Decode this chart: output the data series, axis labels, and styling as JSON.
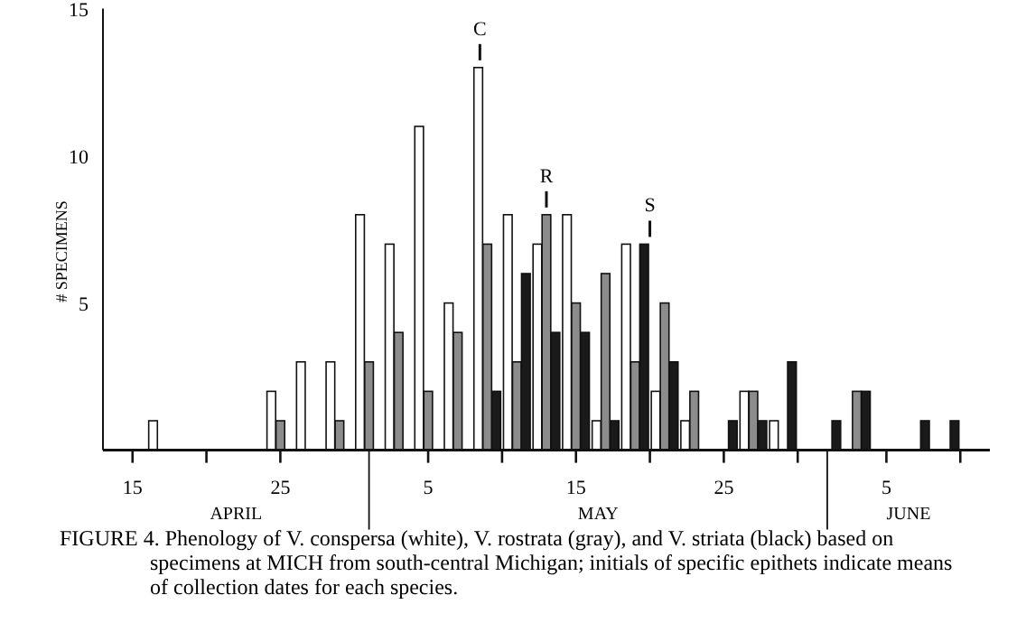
{
  "chart_data": {
    "type": "bar",
    "ylabel": "# SPECIMENS",
    "x": [
      "--04-17",
      "--04-25",
      "--04-27",
      "--04-29",
      "--05-01",
      "--05-03",
      "--05-05",
      "--05-07",
      "--05-09",
      "--05-11",
      "--05-13",
      "--05-15",
      "--05-17",
      "--05-19",
      "--05-21",
      "--05-23",
      "--05-25",
      "--05-27",
      "--05-29",
      "--06-01",
      "--06-03",
      "--06-07",
      "--06-09"
    ],
    "series": [
      {
        "color": "#ffffff",
        "values": [
          1,
          2,
          3,
          3,
          8,
          7,
          11,
          5,
          13,
          8,
          7,
          8,
          1,
          7,
          2,
          1,
          null,
          2,
          1,
          null,
          null,
          null,
          null
        ]
      },
      {
        "color": "#8c8c8c",
        "values": [
          null,
          1,
          null,
          1,
          3,
          4,
          2,
          4,
          7,
          3,
          8,
          5,
          6,
          3,
          5,
          2,
          null,
          2,
          null,
          null,
          2,
          null,
          null
        ]
      },
      {
        "color": "#1a1a1a",
        "values": [
          null,
          null,
          null,
          null,
          null,
          null,
          null,
          null,
          2,
          6,
          4,
          4,
          1,
          7,
          3,
          null,
          1,
          1,
          3,
          1,
          2,
          1,
          1
        ]
      }
    ],
    "xlim": [
      "--04-13",
      "--06-12"
    ],
    "xticks": [
      {
        "value": "--04-15",
        "label": "15"
      },
      {
        "value": "--04-20",
        "label": null
      },
      {
        "value": "--04-25",
        "label": "25"
      },
      {
        "value": "--05-05",
        "label": "5"
      },
      {
        "value": "--05-10",
        "label": null
      },
      {
        "value": "--05-15",
        "label": "15"
      },
      {
        "value": "--05-20",
        "label": null
      },
      {
        "value": "--05-25",
        "label": "25"
      },
      {
        "value": "--05-30",
        "label": null
      },
      {
        "value": "--06-05",
        "label": "5"
      },
      {
        "value": "--06-10",
        "label": null
      }
    ],
    "ylim": [
      0,
      15
    ],
    "yticks": [
      5,
      10,
      15
    ],
    "annotations": [
      {
        "text": "C",
        "x": "--05-08T12:00",
        "y": 13
      },
      {
        "text": "R",
        "x": "--05-13",
        "y": 8
      },
      {
        "text": "S",
        "x": "--05-20",
        "y": 7
      },
      "APRIL",
      "MAY",
      "JUNE",
      "FIGURE 4. Phenology of V. conspersa (white), V. rostrata (gray), and V. striata (black) based on specimens at MICH from south-central Michigan; initials of specific epithets indicate means of collection dates for each species."
    ],
    "grid": false
  }
}
